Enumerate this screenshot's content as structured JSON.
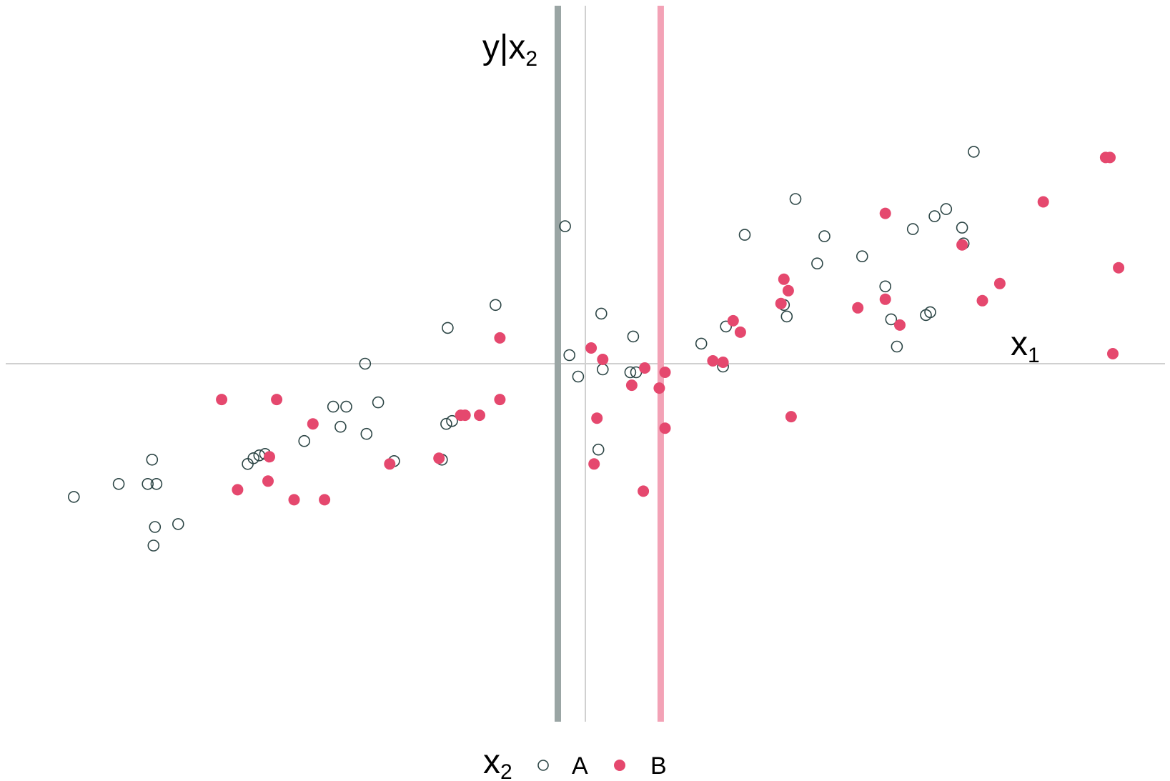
{
  "chart_data": {
    "type": "scatter",
    "x_axis_label": {
      "main": "x",
      "sub": "1"
    },
    "y_axis_label": {
      "main": "y|x",
      "sub": "2"
    },
    "xlim": [
      -4.0,
      4.0
    ],
    "ylim": [
      -2.5,
      2.5
    ],
    "grid": false,
    "reference_lines": [
      {
        "name": "mean-all",
        "x": 0.0,
        "color": "#d0d0d0"
      },
      {
        "name": "mean-A",
        "x": -0.19,
        "color": "#9aa5a4"
      },
      {
        "name": "mean-B",
        "x": 0.52,
        "color": "#f3a2b6"
      }
    ],
    "legend": {
      "title_main": "x",
      "title_sub": "2",
      "position": "bottom",
      "entries": [
        {
          "label": "A",
          "marker": "open-circle",
          "color": "#2d4646"
        },
        {
          "label": "B",
          "marker": "filled-circle",
          "color": "#e5486e"
        }
      ]
    },
    "series": [
      {
        "name": "A",
        "color": "#2d4646",
        "points": [
          [
            -3.53,
            -0.93
          ],
          [
            -3.22,
            -0.84
          ],
          [
            -3.02,
            -0.84
          ],
          [
            -2.96,
            -0.84
          ],
          [
            -2.99,
            -0.67
          ],
          [
            -2.97,
            -1.14
          ],
          [
            -2.98,
            -1.27
          ],
          [
            -2.81,
            -1.12
          ],
          [
            -2.33,
            -0.7
          ],
          [
            -2.29,
            -0.66
          ],
          [
            -2.25,
            -0.64
          ],
          [
            -2.21,
            -0.63
          ],
          [
            -1.94,
            -0.54
          ],
          [
            -1.74,
            -0.3
          ],
          [
            -1.69,
            -0.44
          ],
          [
            -1.65,
            -0.3
          ],
          [
            -1.52,
            0.0
          ],
          [
            -1.51,
            -0.49
          ],
          [
            -1.43,
            -0.27
          ],
          [
            -1.32,
            -0.68
          ],
          [
            -0.95,
            0.25
          ],
          [
            -0.96,
            -0.42
          ],
          [
            -0.92,
            -0.4
          ],
          [
            -0.99,
            -0.67
          ],
          [
            -0.62,
            0.41
          ],
          [
            -0.14,
            0.96
          ],
          [
            -0.11,
            0.06
          ],
          [
            -0.05,
            -0.09
          ],
          [
            0.11,
            0.35
          ],
          [
            0.12,
            -0.04
          ],
          [
            0.09,
            -0.6
          ],
          [
            0.31,
            -0.06
          ],
          [
            0.35,
            -0.06
          ],
          [
            0.33,
            0.19
          ],
          [
            0.8,
            0.14
          ],
          [
            0.97,
            0.26
          ],
          [
            0.95,
            -0.02
          ],
          [
            1.1,
            0.9
          ],
          [
            1.37,
            0.41
          ],
          [
            1.39,
            0.33
          ],
          [
            1.45,
            1.15
          ],
          [
            1.6,
            0.7
          ],
          [
            1.65,
            0.89
          ],
          [
            1.91,
            0.75
          ],
          [
            2.07,
            0.54
          ],
          [
            2.11,
            0.31
          ],
          [
            2.15,
            0.12
          ],
          [
            2.26,
            0.94
          ],
          [
            2.35,
            0.34
          ],
          [
            2.38,
            0.36
          ],
          [
            2.41,
            1.03
          ],
          [
            2.49,
            1.08
          ],
          [
            2.6,
            0.95
          ],
          [
            2.61,
            0.84
          ],
          [
            2.68,
            1.48
          ]
        ]
      },
      {
        "name": "B",
        "color": "#e5486e",
        "points": [
          [
            -2.51,
            -0.25
          ],
          [
            -2.4,
            -0.88
          ],
          [
            -2.18,
            -0.65
          ],
          [
            -2.13,
            -0.25
          ],
          [
            -2.19,
            -0.82
          ],
          [
            -2.01,
            -0.95
          ],
          [
            -1.88,
            -0.42
          ],
          [
            -1.8,
            -0.95
          ],
          [
            -1.35,
            -0.7
          ],
          [
            -1.01,
            -0.66
          ],
          [
            -0.86,
            -0.36
          ],
          [
            -0.83,
            -0.36
          ],
          [
            -0.73,
            -0.36
          ],
          [
            -0.59,
            0.18
          ],
          [
            -0.59,
            -0.25
          ],
          [
            0.04,
            0.11
          ],
          [
            0.12,
            0.03
          ],
          [
            0.08,
            -0.38
          ],
          [
            0.06,
            -0.7
          ],
          [
            0.32,
            -0.15
          ],
          [
            0.41,
            -0.03
          ],
          [
            0.51,
            -0.17
          ],
          [
            0.55,
            -0.06
          ],
          [
            0.55,
            -0.45
          ],
          [
            0.4,
            -0.89
          ],
          [
            0.88,
            0.02
          ],
          [
            0.95,
            0.01
          ],
          [
            1.02,
            0.3
          ],
          [
            1.07,
            0.22
          ],
          [
            1.35,
            0.42
          ],
          [
            1.37,
            0.59
          ],
          [
            1.4,
            0.51
          ],
          [
            1.42,
            -0.37
          ],
          [
            1.88,
            0.39
          ],
          [
            2.07,
            1.05
          ],
          [
            2.07,
            0.45
          ],
          [
            2.17,
            0.27
          ],
          [
            2.6,
            0.83
          ],
          [
            2.74,
            0.44
          ],
          [
            2.86,
            0.56
          ],
          [
            3.16,
            1.13
          ],
          [
            3.59,
            1.44
          ],
          [
            3.62,
            1.44
          ],
          [
            3.64,
            0.07
          ],
          [
            3.68,
            0.67
          ]
        ]
      }
    ]
  }
}
